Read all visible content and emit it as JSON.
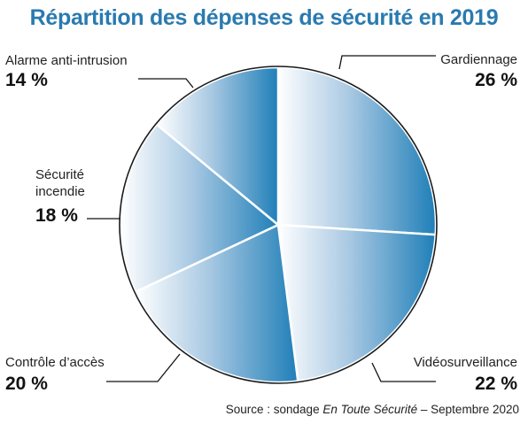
{
  "chart_data": {
    "type": "pie",
    "title": "Répartition des dépenses de sécurité en 2019",
    "slices": [
      {
        "label": "Gardiennage",
        "value": 26,
        "value_label": "26 %"
      },
      {
        "label": "Vidéosurveillance",
        "value": 22,
        "value_label": "22 %"
      },
      {
        "label": "Contrôle d’accès",
        "value": 20,
        "value_label": "20 %"
      },
      {
        "label": "Sécurité\nincendie",
        "value": 18,
        "value_label": "18 %"
      },
      {
        "label": "Alarme anti-intrusion",
        "value": 14,
        "value_label": "14 %"
      }
    ],
    "start": "top, clockwise",
    "colors": {
      "light": "#ffffff",
      "dark": "#1f7fb8",
      "title": "#2a7ab0",
      "outline": "#1a1a1a"
    }
  },
  "source": {
    "prefix": "Source : sondage ",
    "italic": "En Toute Sécurité",
    "suffix": " – Septembre 2020"
  }
}
